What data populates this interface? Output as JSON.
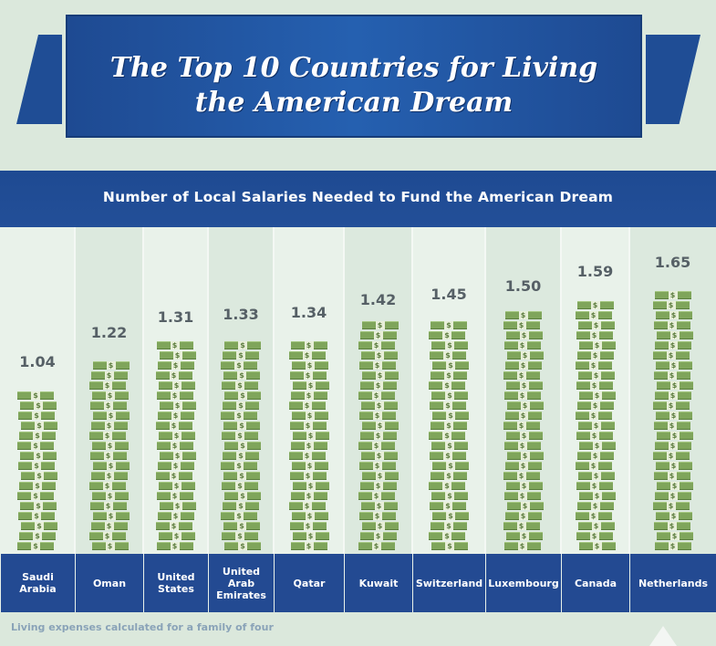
{
  "title_line1": "The Top 10 Countries for Living",
  "title_line2": "the American Dream",
  "subtitle": "Number of Local Salaries Needed to Fund the American Dream",
  "note": "Living expenses calculated for a family of four",
  "colors": {
    "banner": "#1f4d95",
    "label_bar": "#234a92",
    "bill_green": "#7fa55b",
    "background": "#dbe8dc"
  },
  "icons": {
    "bill": "dollar-bill-icon"
  },
  "chart_data": {
    "type": "bar",
    "title": "Number of Local Salaries Needed to Fund the American Dream",
    "categories": [
      "Saudi Arabia",
      "Oman",
      "United States",
      "United Arab Emirates",
      "Qatar",
      "Kuwait",
      "Switzerland",
      "Luxembourg",
      "Canada",
      "Netherlands"
    ],
    "category_labels": [
      [
        "Saudi",
        "Arabia"
      ],
      [
        "Oman"
      ],
      [
        "United",
        "States"
      ],
      [
        "United",
        "Arab",
        "Emirates"
      ],
      [
        "Qatar"
      ],
      [
        "Kuwait"
      ],
      [
        "Switzerland"
      ],
      [
        "Luxembourg"
      ],
      [
        "Canada"
      ],
      [
        "Netherlands"
      ]
    ],
    "values": [
      1.04,
      1.22,
      1.31,
      1.33,
      1.34,
      1.42,
      1.45,
      1.5,
      1.59,
      1.65
    ],
    "value_labels": [
      "1.04",
      "1.22",
      "1.31",
      "1.33",
      "1.34",
      "1.42",
      "1.45",
      "1.50",
      "1.59",
      "1.65"
    ],
    "ylim": [
      0,
      1.72
    ],
    "xlabel": "",
    "ylabel": "",
    "grid": false,
    "legend": "none"
  }
}
